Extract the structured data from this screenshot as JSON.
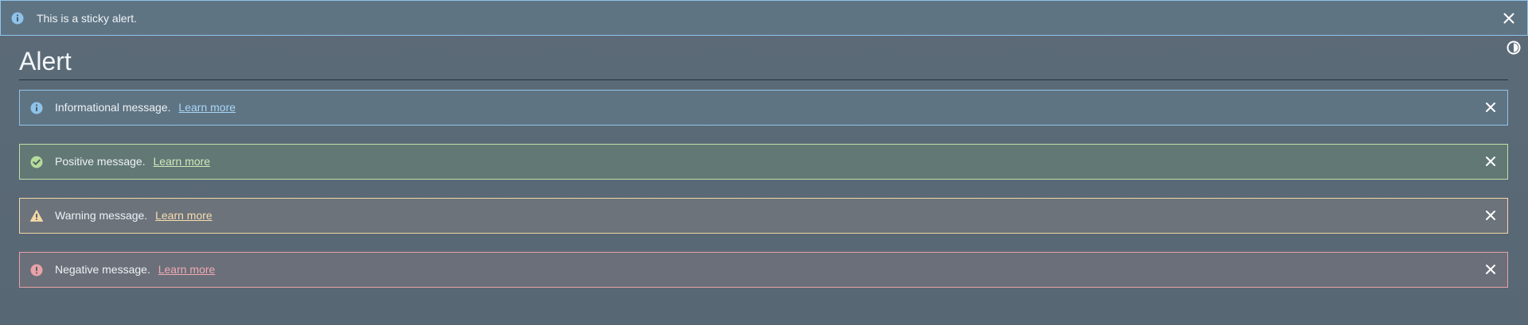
{
  "sticky_alert": {
    "icon": "info-icon",
    "text": "This is a sticky alert.",
    "close_icon": "close-icon"
  },
  "theme_toggle": {
    "icon": "contrast-icon"
  },
  "page": {
    "title": "Alert"
  },
  "alerts": [
    {
      "type": "informational",
      "icon": "info-icon",
      "message": "Informational message.",
      "link": "Learn more",
      "color": "#8fc3ea"
    },
    {
      "type": "positive",
      "icon": "check-circle-icon",
      "message": "Positive message.",
      "link": "Learn more",
      "color": "#c0e0a8"
    },
    {
      "type": "warning",
      "icon": "warning-triangle-icon",
      "message": "Warning message.",
      "link": "Learn more",
      "color": "#f3d8a6"
    },
    {
      "type": "negative",
      "icon": "error-circle-icon",
      "message": "Negative message.",
      "link": "Learn more",
      "color": "#e8a2a8"
    }
  ]
}
